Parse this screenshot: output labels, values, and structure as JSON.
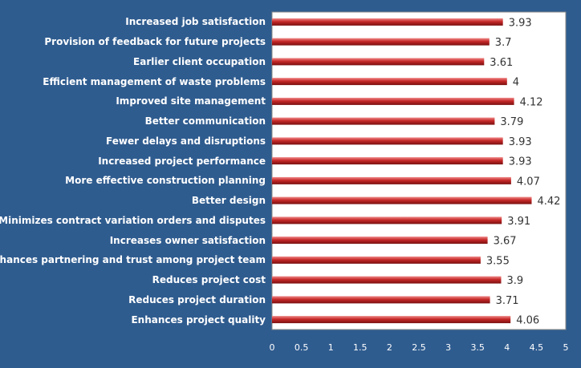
{
  "colors": {
    "background": "#2f5c8f",
    "plot_area": "#ffffff",
    "bar": "#c62828"
  },
  "chart_data": {
    "type": "bar",
    "orientation": "horizontal",
    "title": "",
    "xlabel": "",
    "ylabel": "",
    "xlim": [
      0,
      5
    ],
    "x_ticks": [
      "0",
      "0.5",
      "1",
      "1.5",
      "2",
      "2.5",
      "3",
      "3.5",
      "4",
      "4.5",
      "5"
    ],
    "categories": [
      "Increased job satisfaction",
      "Provision of feedback for future projects",
      "Earlier client occupation",
      "Efficient management  of waste problems",
      "Improved site management",
      "Better communication",
      "Fewer delays and disruptions",
      "Increased project performance",
      "More effective construction planning",
      "Better design",
      "Minimizes contract variation orders and disputes",
      "Increases owner satisfaction",
      "Enhances partnering  and trust among project team",
      "Reduces project cost",
      "Reduces project duration",
      "Enhances project quality"
    ],
    "values": [
      3.93,
      3.7,
      3.61,
      4,
      4.12,
      3.79,
      3.93,
      3.93,
      4.07,
      4.42,
      3.91,
      3.67,
      3.55,
      3.9,
      3.71,
      4.06
    ],
    "value_labels": [
      "3.93",
      "3.7",
      "3.61",
      "4",
      "4.12",
      "3.79",
      "3.93",
      "3.93",
      "4.07",
      "4.42",
      "3.91",
      "3.67",
      "3.55",
      "3.9",
      "3.71",
      "4.06"
    ]
  }
}
